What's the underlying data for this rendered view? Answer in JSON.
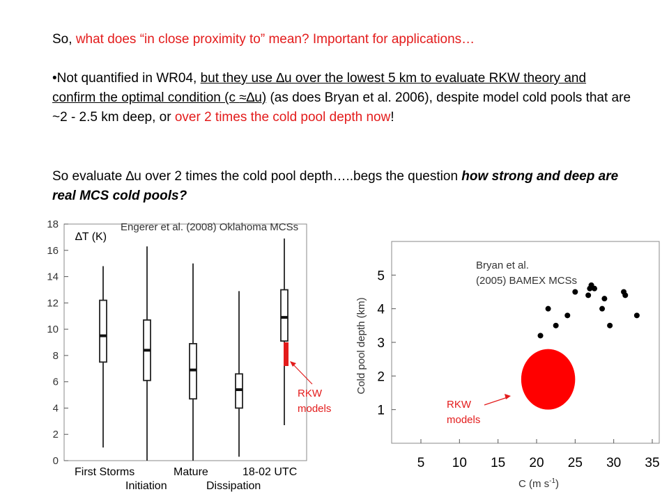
{
  "text": {
    "heading_prefix": "So, ",
    "heading_red": "what does “in close proximity to” mean?  Important for applications…",
    "bullet": "•",
    "b1_a": "Not quantified in WR04, ",
    "b1_b": "but they use ",
    "b1_delta": "∆",
    "b1_c": "u over the lowest 5 km to evaluate RKW theory and confirm the optimal condition (c ",
    "b1_approx": "≈",
    "b1_d": "∆u)",
    "b1_e": " (as does Bryan et al. 2006), despite model cold pools that are ~2 - 2.5 km deep, or ",
    "b1_red": "over 2 times the cold pool depth now",
    "b1_f": "!",
    "p2_a": "So evaluate ",
    "p2_delta": "∆",
    "p2_b": "u over 2 times the cold pool depth…..begs the question ",
    "p2_it": "how strong and deep are real MCS cold pools?"
  },
  "chart_data": [
    {
      "type": "box",
      "title": "Engerer et al. (2008) Oklahoma MCSs",
      "ylabel": "∆T (K)",
      "ylim": [
        0,
        18
      ],
      "yticks": [
        0,
        2,
        4,
        6,
        8,
        10,
        12,
        14,
        16,
        18
      ],
      "categories": [
        "First Storms",
        "Initiation",
        "Mature",
        "Dissipation",
        "18-02 UTC"
      ],
      "boxes": [
        {
          "category": "First Storms",
          "min": 1.0,
          "q1": 7.5,
          "median": 9.5,
          "q3": 12.2,
          "max": 14.8
        },
        {
          "category": "Initiation",
          "min": 0.0,
          "q1": 6.1,
          "median": 8.4,
          "q3": 10.7,
          "max": 16.3
        },
        {
          "category": "Mature",
          "min": 0.0,
          "q1": 4.7,
          "median": 6.9,
          "q3": 8.9,
          "max": 15.0
        },
        {
          "category": "Dissipation",
          "min": 0.3,
          "q1": 4.0,
          "median": 5.4,
          "q3": 6.6,
          "max": 12.9
        },
        {
          "category": "18-02 UTC",
          "min": 2.7,
          "q1": 9.1,
          "median": 10.9,
          "q3": 13.0,
          "max": 16.9
        }
      ],
      "rkw_models": {
        "label": "RKW models",
        "range": [
          7.2,
          9.0
        ],
        "color": "#e31b1b"
      }
    },
    {
      "type": "scatter",
      "title": "Bryan et al. (2005) BAMEX MCSs",
      "xlabel": "C (m s",
      "xlabel_sup": "-1",
      "xlabel_end": ")",
      "ylabel": "Cold pool depth (km)",
      "xlim": [
        5,
        35
      ],
      "ylim": [
        0,
        6
      ],
      "xticks": [
        5,
        10,
        15,
        20,
        25,
        30,
        35
      ],
      "yticks": [
        1,
        2,
        3,
        4,
        5
      ],
      "points": [
        {
          "x": 20.5,
          "y": 3.2
        },
        {
          "x": 21.5,
          "y": 4.0
        },
        {
          "x": 22.5,
          "y": 3.5
        },
        {
          "x": 24.0,
          "y": 3.8
        },
        {
          "x": 25.0,
          "y": 4.5
        },
        {
          "x": 26.7,
          "y": 4.4
        },
        {
          "x": 26.9,
          "y": 4.6
        },
        {
          "x": 27.1,
          "y": 4.7
        },
        {
          "x": 27.5,
          "y": 4.6
        },
        {
          "x": 28.5,
          "y": 4.0
        },
        {
          "x": 28.8,
          "y": 4.3
        },
        {
          "x": 29.5,
          "y": 3.5
        },
        {
          "x": 31.3,
          "y": 4.5
        },
        {
          "x": 31.5,
          "y": 4.4
        },
        {
          "x": 33.0,
          "y": 3.8
        }
      ],
      "rkw_models": {
        "label": "RKW models",
        "center": [
          21.5,
          1.9
        ],
        "rx": 3.5,
        "ry": 0.9,
        "color": "#ff0000"
      }
    }
  ]
}
